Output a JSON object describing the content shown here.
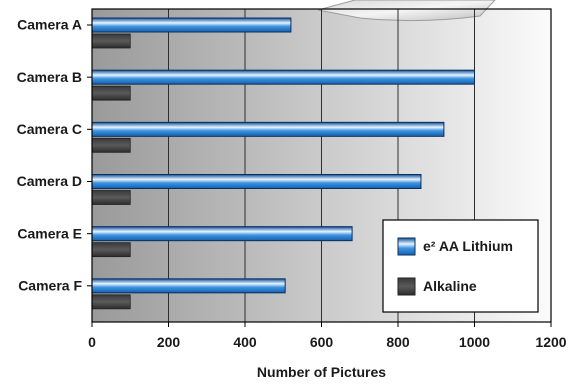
{
  "chart_data": {
    "type": "bar",
    "orientation": "horizontal",
    "categories": [
      "Camera A",
      "Camera B",
      "Camera C",
      "Camera D",
      "Camera E",
      "Camera F"
    ],
    "series": [
      {
        "name": "e² AA Lithium",
        "values": [
          520,
          1000,
          920,
          860,
          680,
          505
        ],
        "color": "#2b86d6"
      },
      {
        "name": "Alkaline",
        "values": [
          100,
          100,
          100,
          100,
          100,
          100
        ],
        "color": "#4a4a4a"
      }
    ],
    "xlabel": "Number of Pictures",
    "ylabel": "",
    "title": "",
    "xlim": [
      0,
      1200
    ],
    "xticks": [
      0,
      200,
      400,
      600,
      800,
      1000,
      1200
    ],
    "grid": true,
    "legend_position": "bottom-right",
    "background": "gradient-gray-to-white"
  }
}
